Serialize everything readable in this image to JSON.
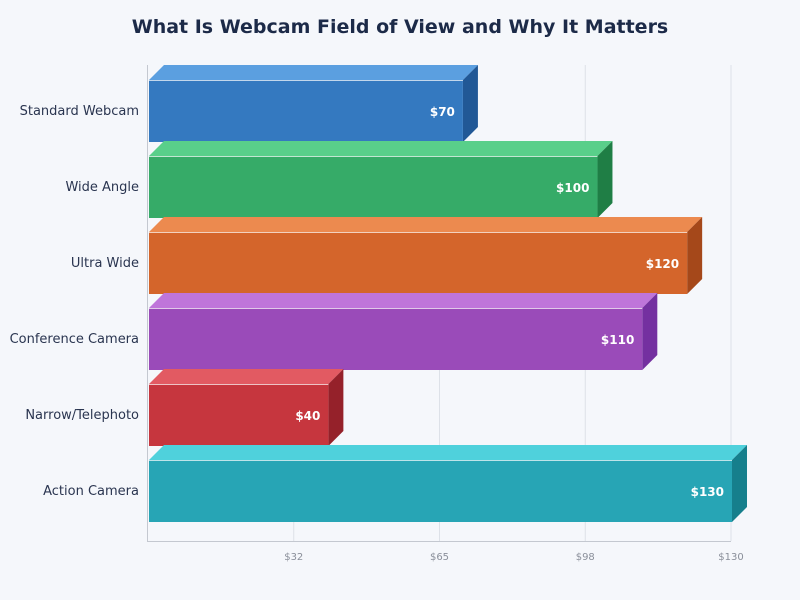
{
  "chart_data": {
    "type": "bar",
    "orientation": "horizontal",
    "style": "3d",
    "title": "What Is Webcam Field of View and Why It Matters",
    "categories": [
      "Standard Webcam",
      "Wide Angle",
      "Ultra Wide",
      "Conference Camera",
      "Narrow/Telephoto",
      "Action Camera"
    ],
    "values": [
      70,
      100,
      120,
      110,
      40,
      130
    ],
    "data_labels": [
      "$70",
      "$100",
      "$120",
      "$110",
      "$40",
      "$130"
    ],
    "colors": [
      "#3479c0",
      "#36ab68",
      "#d4652b",
      "#9a4bb9",
      "#c6363e",
      "#27a5b5"
    ],
    "top_colors": [
      "#5b9fe0",
      "#59cf8a",
      "#ec8a4f",
      "#bf75da",
      "#e25a62",
      "#4fd1dc"
    ],
    "side_colors": [
      "#215896",
      "#1f7e45",
      "#a5481a",
      "#7430a0",
      "#95212a",
      "#167f8c"
    ],
    "xlim": [
      0,
      130
    ],
    "x_ticks": [
      32.5,
      65,
      97.5,
      130
    ],
    "x_tick_labels": [
      "$32",
      "$65",
      "$98",
      "$130"
    ],
    "grid": true,
    "legend": "none"
  }
}
